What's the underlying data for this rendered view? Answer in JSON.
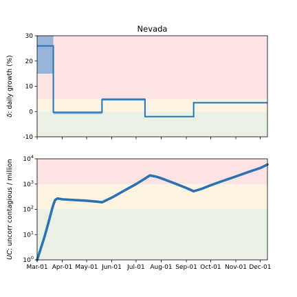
{
  "chart_data": [
    {
      "type": "line",
      "title": "Nevada",
      "ylabel_italic": "δ",
      "ylabel_rest": ": daily growth (%)",
      "ylim": [
        -10,
        30
      ],
      "yticks": [
        -10,
        0,
        10,
        20,
        30
      ],
      "xlim": [
        "2020-03-01",
        "2020-12-10"
      ],
      "grid": false,
      "zones": [
        {
          "from": 5,
          "to": 30,
          "color": "#fde3e3"
        },
        {
          "from": 0,
          "to": 5,
          "color": "#fdf3e3"
        },
        {
          "from": -10,
          "to": 0,
          "color": "#e8f1e4"
        }
      ],
      "series_color": "#2b72b0",
      "band_color": "#6a9fd6",
      "uncertainty_band": [
        {
          "x0": "2020-03-01",
          "x1": "2020-03-21",
          "lo": 15,
          "hi": 30
        },
        {
          "x0": "2020-03-21",
          "x1": "2020-05-20",
          "lo": -1.0,
          "hi": 0
        },
        {
          "x0": "2020-05-20",
          "x1": "2020-07-12",
          "lo": 4.3,
          "hi": 5.3
        },
        {
          "x0": "2020-07-12",
          "x1": "2020-09-10",
          "lo": -2.2,
          "hi": -1.8
        },
        {
          "x0": "2020-09-10",
          "x1": "2020-12-10",
          "lo": 3.2,
          "hi": 3.7
        }
      ],
      "steps": [
        {
          "x0": "2020-03-01",
          "x1": "2020-03-21",
          "y": 26
        },
        {
          "x0": "2020-03-21",
          "x1": "2020-05-20",
          "y": -0.3
        },
        {
          "x0": "2020-05-20",
          "x1": "2020-07-12",
          "y": 4.8
        },
        {
          "x0": "2020-07-12",
          "x1": "2020-09-10",
          "y": -2.0
        },
        {
          "x0": "2020-09-10",
          "x1": "2020-12-10",
          "y": 3.5
        }
      ]
    },
    {
      "type": "line",
      "scale": "log",
      "ylabel_italic": "UC",
      "ylabel_rest": ": uncorr contagious / million",
      "ylim": [
        1,
        10000
      ],
      "yticks": [
        1,
        10,
        100,
        1000,
        10000
      ],
      "xlim": [
        "2020-03-01",
        "2020-12-10"
      ],
      "xticks": [
        {
          "date": "2020-03-01",
          "label": "Mar-01"
        },
        {
          "date": "2020-04-01",
          "label": "Apr-01"
        },
        {
          "date": "2020-05-01",
          "label": "May-01"
        },
        {
          "date": "2020-06-01",
          "label": "Jun-01"
        },
        {
          "date": "2020-07-01",
          "label": "Jul-01"
        },
        {
          "date": "2020-08-01",
          "label": "Aug-01"
        },
        {
          "date": "2020-09-01",
          "label": "Sep-01"
        },
        {
          "date": "2020-10-01",
          "label": "Oct-01"
        },
        {
          "date": "2020-11-01",
          "label": "Nov-01"
        },
        {
          "date": "2020-12-01",
          "label": "Dec-01"
        }
      ],
      "grid": false,
      "zones": [
        {
          "from": 1000,
          "to": 10000,
          "color": "#fde3e3"
        },
        {
          "from": 100,
          "to": 1000,
          "color": "#fdf3e3"
        },
        {
          "from": 1,
          "to": 100,
          "color": "#e8f1e4"
        }
      ],
      "series_color": "#2b72b0",
      "series": [
        {
          "points": [
            [
              "2020-03-01",
              1.0
            ],
            [
              "2020-03-05",
              2.5
            ],
            [
              "2020-03-10",
              8
            ],
            [
              "2020-03-15",
              30
            ],
            [
              "2020-03-20",
              120
            ],
            [
              "2020-03-23",
              230
            ],
            [
              "2020-03-26",
              270
            ],
            [
              "2020-04-01",
              250
            ],
            [
              "2020-04-15",
              235
            ],
            [
              "2020-05-01",
              220
            ],
            [
              "2020-05-15",
              200
            ],
            [
              "2020-05-20",
              190
            ],
            [
              "2020-06-01",
              290
            ],
            [
              "2020-06-15",
              520
            ],
            [
              "2020-07-01",
              1000
            ],
            [
              "2020-07-12",
              1650
            ],
            [
              "2020-07-18",
              2200
            ],
            [
              "2020-07-25",
              2000
            ],
            [
              "2020-08-01",
              1700
            ],
            [
              "2020-08-15",
              1150
            ],
            [
              "2020-09-01",
              700
            ],
            [
              "2020-09-10",
              520
            ],
            [
              "2020-09-20",
              650
            ],
            [
              "2020-10-01",
              900
            ],
            [
              "2020-10-15",
              1300
            ],
            [
              "2020-11-01",
              2000
            ],
            [
              "2020-11-15",
              2900
            ],
            [
              "2020-12-01",
              4300
            ],
            [
              "2020-12-10",
              5900
            ]
          ]
        }
      ]
    }
  ]
}
